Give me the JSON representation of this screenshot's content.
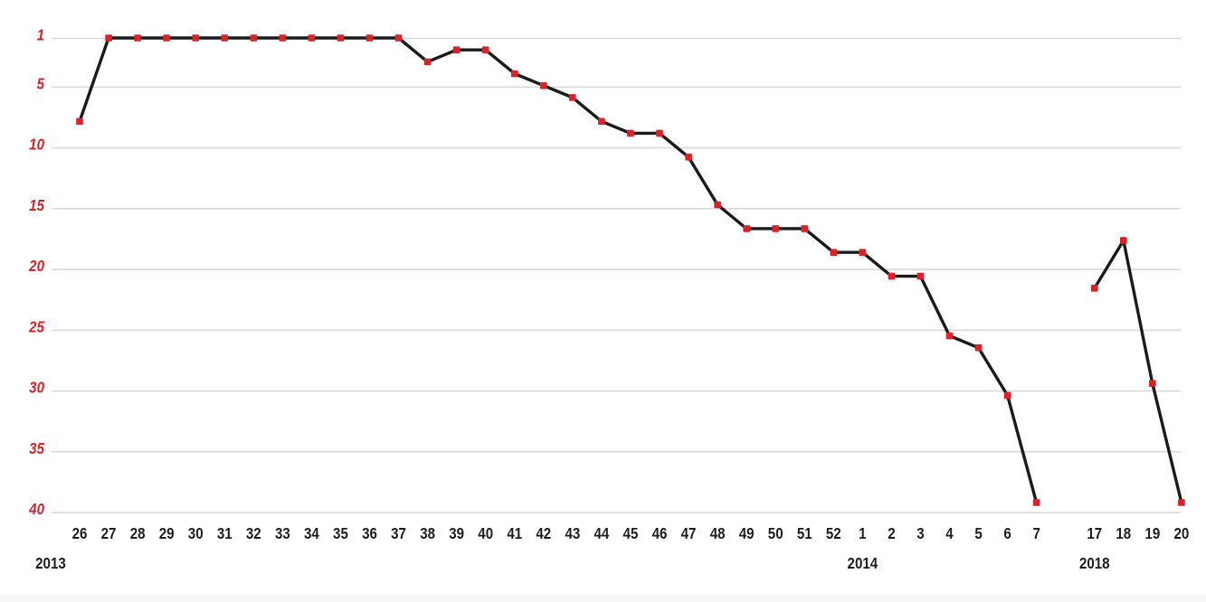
{
  "chart_data": {
    "type": "line",
    "title": "",
    "y_axis": {
      "ticks": [
        1,
        5,
        10,
        15,
        20,
        25,
        30,
        35,
        40
      ],
      "min": 1,
      "max": 40,
      "inverted": true,
      "meaning": "chart position (1 = top)"
    },
    "x_axis": {
      "unit": "week number",
      "year_labels": [
        "2013",
        "2014",
        "2018"
      ]
    },
    "grid": true,
    "legend": false,
    "colors": {
      "line": "#1b1b1b",
      "marker": "#dc2127",
      "y_tick_text": "#dc2127",
      "x_tick_text": "#1d1d1d",
      "grid": "#dadada"
    },
    "series": [
      {
        "name": "chart-run-2013-2014",
        "points": [
          {
            "year": 2013,
            "week": 26,
            "position": 8
          },
          {
            "year": 2013,
            "week": 27,
            "position": 1
          },
          {
            "year": 2013,
            "week": 28,
            "position": 1
          },
          {
            "year": 2013,
            "week": 29,
            "position": 1
          },
          {
            "year": 2013,
            "week": 30,
            "position": 1
          },
          {
            "year": 2013,
            "week": 31,
            "position": 1
          },
          {
            "year": 2013,
            "week": 32,
            "position": 1
          },
          {
            "year": 2013,
            "week": 33,
            "position": 1
          },
          {
            "year": 2013,
            "week": 34,
            "position": 1
          },
          {
            "year": 2013,
            "week": 35,
            "position": 1
          },
          {
            "year": 2013,
            "week": 36,
            "position": 1
          },
          {
            "year": 2013,
            "week": 37,
            "position": 1
          },
          {
            "year": 2013,
            "week": 38,
            "position": 3
          },
          {
            "year": 2013,
            "week": 39,
            "position": 2
          },
          {
            "year": 2013,
            "week": 40,
            "position": 2
          },
          {
            "year": 2013,
            "week": 41,
            "position": 4
          },
          {
            "year": 2013,
            "week": 42,
            "position": 5
          },
          {
            "year": 2013,
            "week": 43,
            "position": 6
          },
          {
            "year": 2013,
            "week": 44,
            "position": 8
          },
          {
            "year": 2013,
            "week": 45,
            "position": 9
          },
          {
            "year": 2013,
            "week": 46,
            "position": 9
          },
          {
            "year": 2013,
            "week": 47,
            "position": 11
          },
          {
            "year": 2013,
            "week": 48,
            "position": 15
          },
          {
            "year": 2013,
            "week": 49,
            "position": 17
          },
          {
            "year": 2013,
            "week": 50,
            "position": 17
          },
          {
            "year": 2013,
            "week": 51,
            "position": 17
          },
          {
            "year": 2013,
            "week": 52,
            "position": 19
          },
          {
            "year": 2014,
            "week": 1,
            "position": 19
          },
          {
            "year": 2014,
            "week": 2,
            "position": 21
          },
          {
            "year": 2014,
            "week": 3,
            "position": 21
          },
          {
            "year": 2014,
            "week": 4,
            "position": 26
          },
          {
            "year": 2014,
            "week": 5,
            "position": 27
          },
          {
            "year": 2014,
            "week": 6,
            "position": 31
          },
          {
            "year": 2014,
            "week": 7,
            "position": 40
          }
        ]
      },
      {
        "name": "chart-run-2018",
        "points": [
          {
            "year": 2018,
            "week": 17,
            "position": 22
          },
          {
            "year": 2018,
            "week": 18,
            "position": 18
          },
          {
            "year": 2018,
            "week": 19,
            "position": 30
          },
          {
            "year": 2018,
            "week": 20,
            "position": 40
          }
        ]
      }
    ]
  }
}
